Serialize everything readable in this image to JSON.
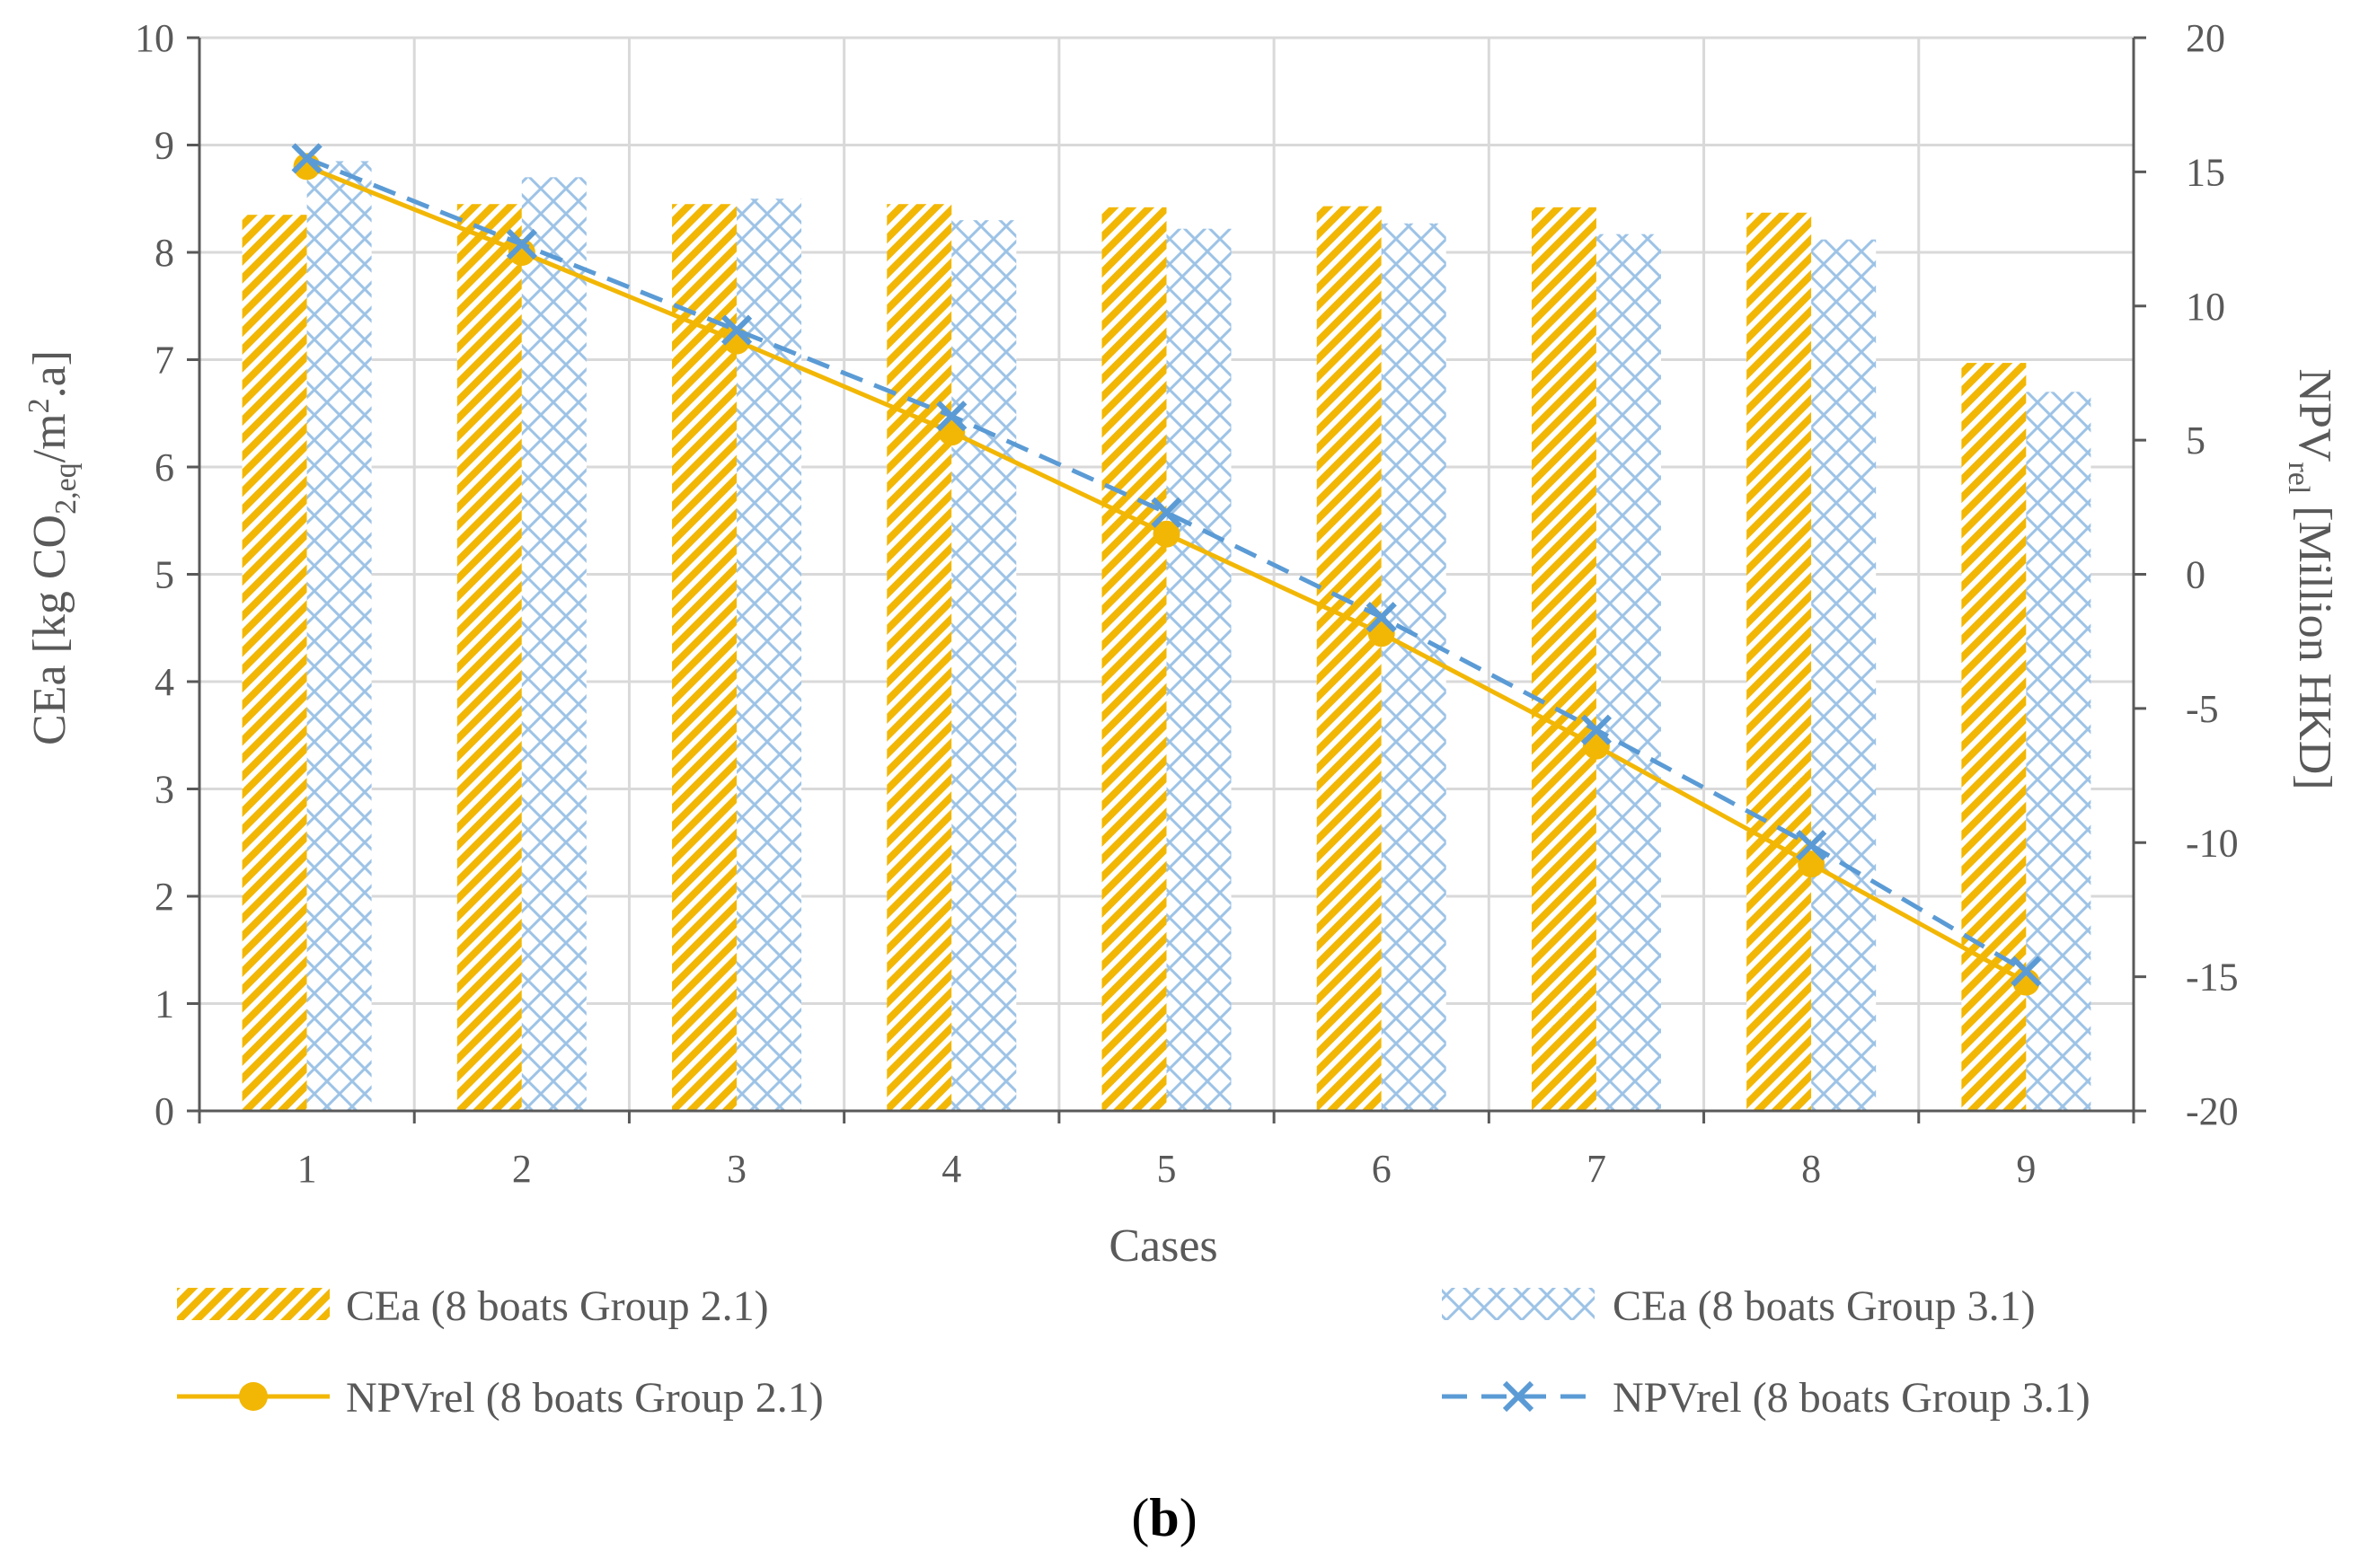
{
  "chart_data": {
    "type": "bar",
    "caption": {
      "open": "(",
      "label": "b",
      "close": ")"
    },
    "xlabel": "Cases",
    "ylabel_left": {
      "main": "CEa [kg CO",
      "sub1": "2,eq",
      "mid": "/m",
      "sup": "2",
      "end": ".a]"
    },
    "ylabel_right": {
      "main": "NPV",
      "sub": "rel",
      "end": " [Million HKD]"
    },
    "categories": [
      "1",
      "2",
      "3",
      "4",
      "5",
      "6",
      "7",
      "8",
      "9"
    ],
    "ylim_left": [
      0,
      10
    ],
    "yticks_left": [
      0,
      1,
      2,
      3,
      4,
      5,
      6,
      7,
      8,
      9,
      10
    ],
    "ylim_right": [
      -20,
      20
    ],
    "yticks_right": [
      -20,
      -15,
      -10,
      -5,
      0,
      5,
      10,
      15,
      20
    ],
    "grid": true,
    "bar_series": [
      {
        "name": "CEa (8 boats Group 2.1)",
        "axis": "left",
        "pattern": "diagonal-hatch",
        "color": "#F2B705",
        "values": [
          8.35,
          8.45,
          8.45,
          8.45,
          8.42,
          8.43,
          8.42,
          8.37,
          6.97
        ]
      },
      {
        "name": "CEa (8 boats Group 3.1)",
        "axis": "left",
        "pattern": "cross-hatch",
        "color": "#9DC3E6",
        "values": [
          8.85,
          8.7,
          8.5,
          8.3,
          8.22,
          8.27,
          8.17,
          8.12,
          6.7
        ]
      }
    ],
    "line_series": [
      {
        "name": "NPVrel (8 boats Group 2.1)",
        "axis": "right",
        "marker": "circle",
        "dash": "solid",
        "color": "#F2B705",
        "values": [
          15.2,
          12.0,
          8.7,
          5.3,
          1.5,
          -2.2,
          -6.4,
          -10.8,
          -15.2
        ]
      },
      {
        "name": "NPVrel (8 boats Group 3.1)",
        "axis": "right",
        "marker": "x",
        "dash": "dashed",
        "color": "#5B9BD5",
        "values": [
          15.5,
          12.3,
          9.1,
          5.9,
          2.3,
          -1.6,
          -5.8,
          -10.1,
          -14.8
        ]
      }
    ]
  }
}
